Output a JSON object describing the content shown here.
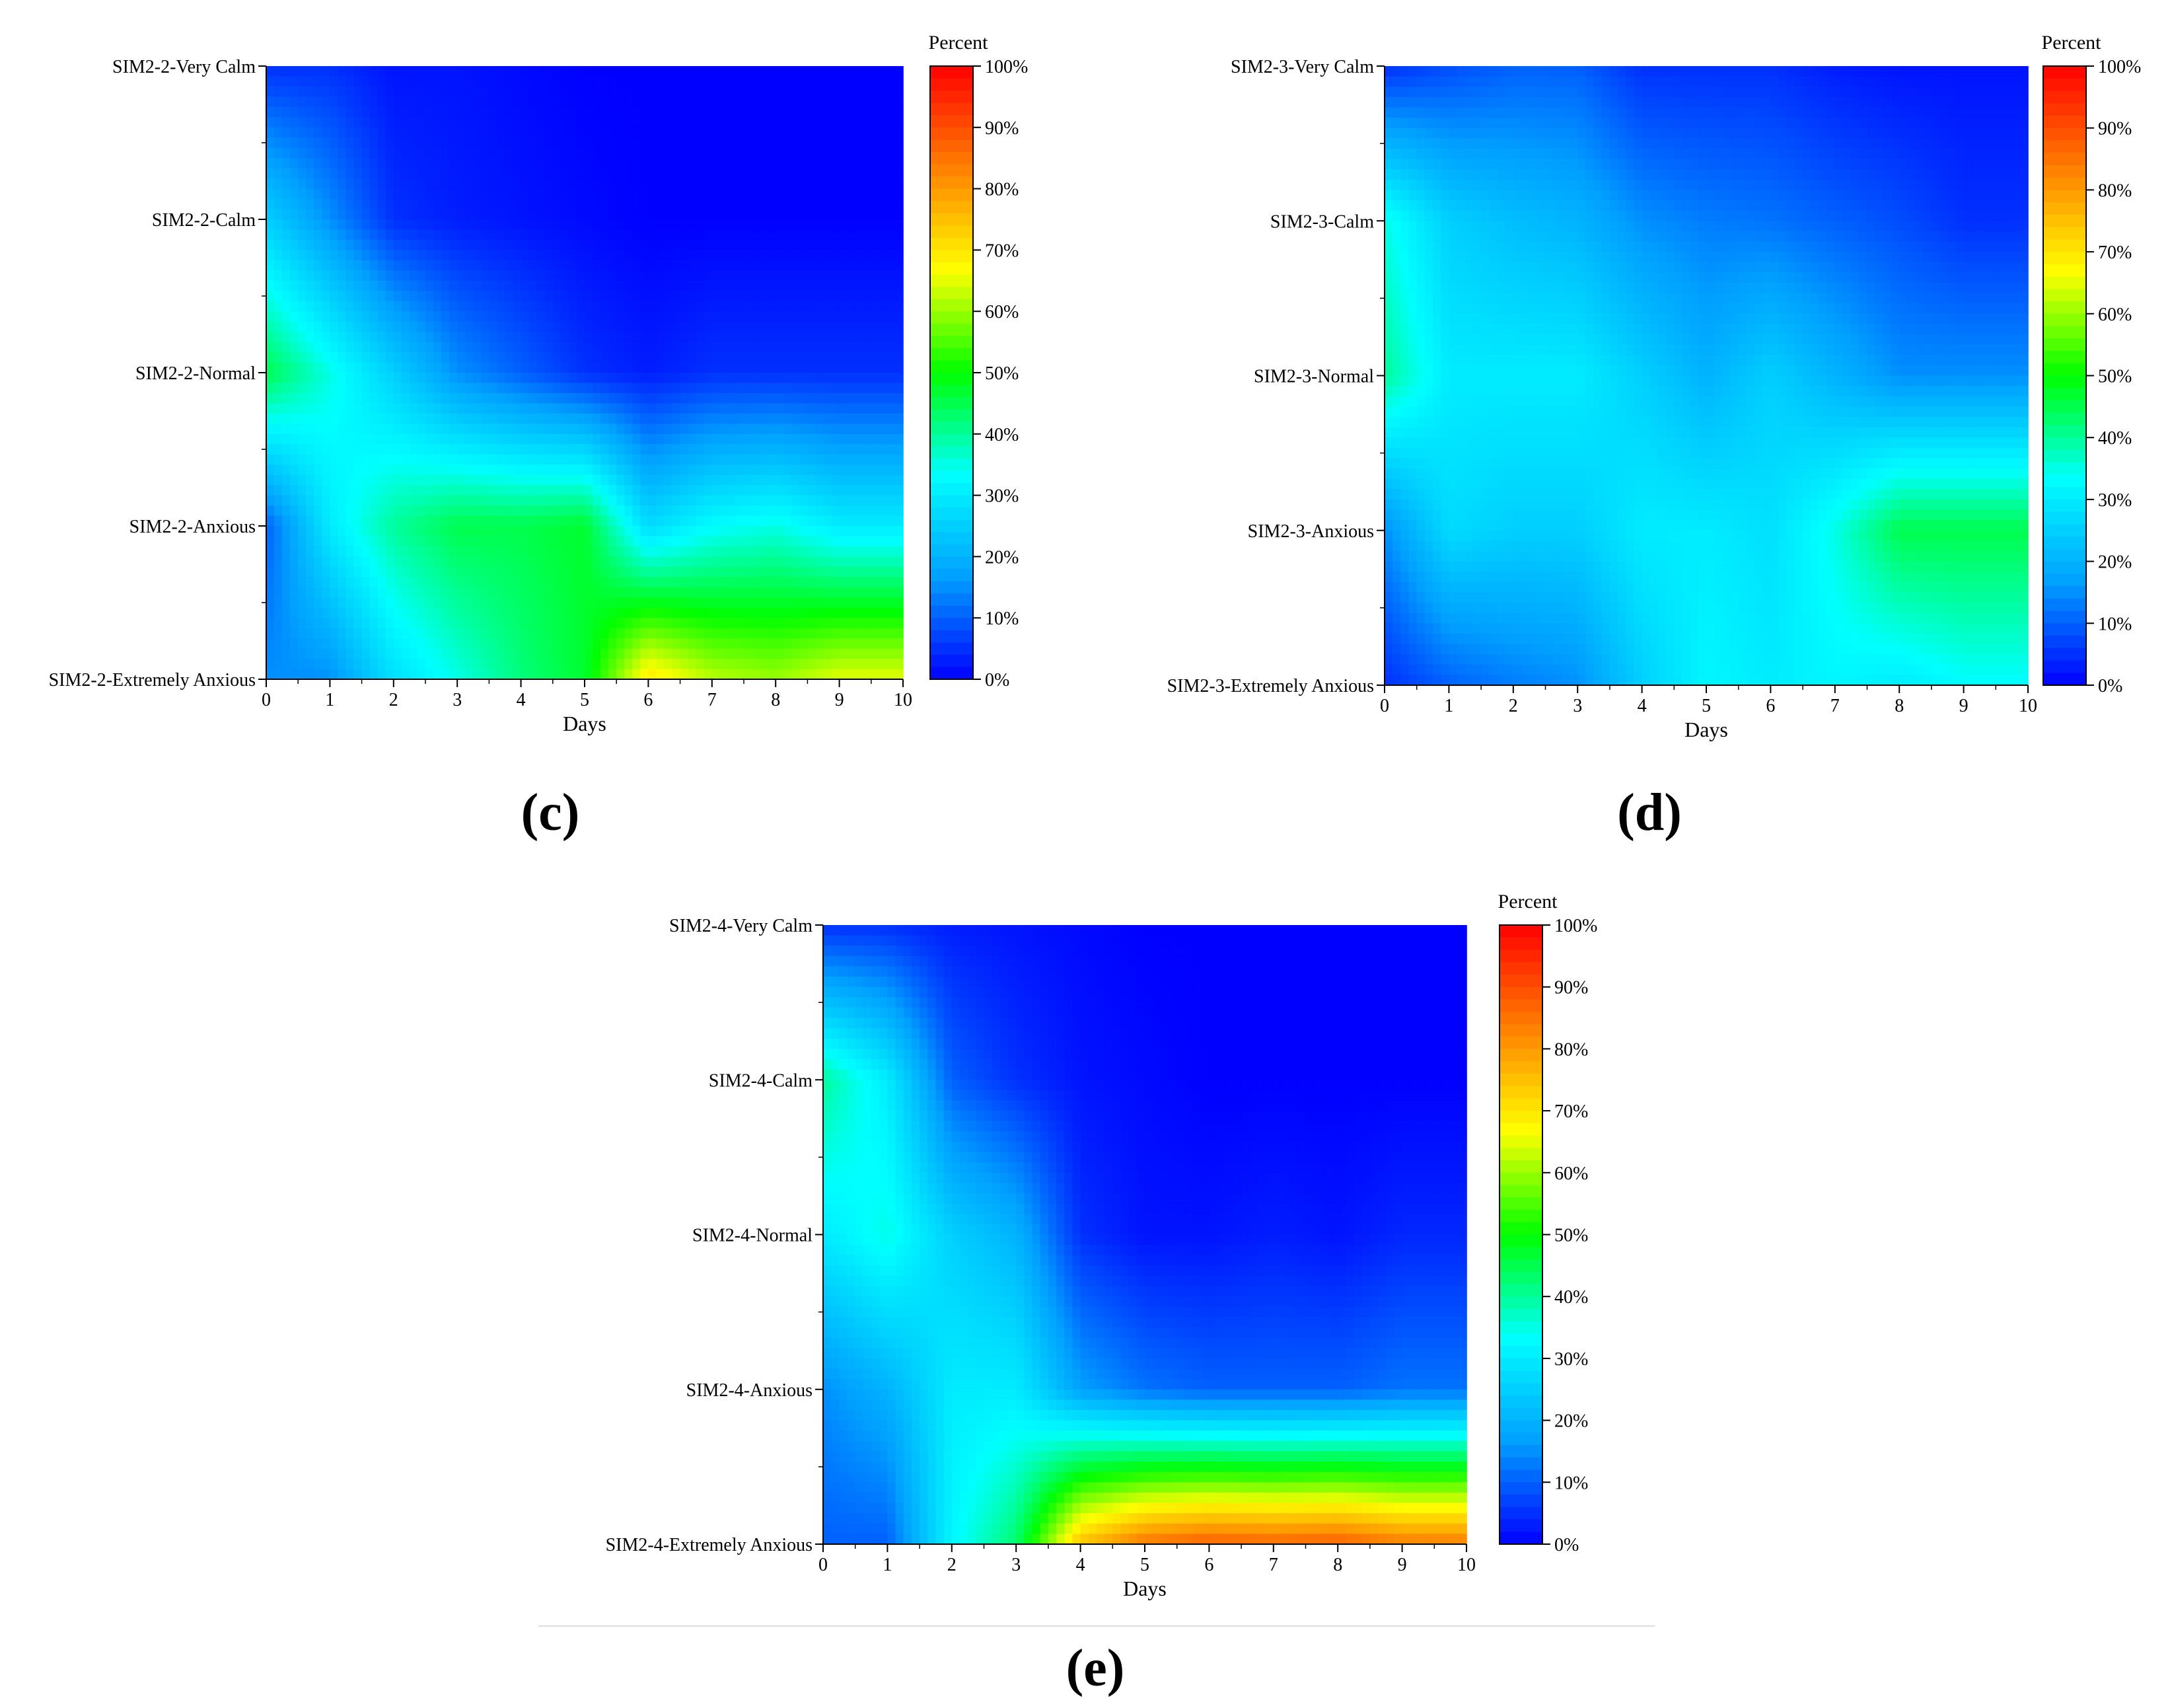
{
  "colorbar": {
    "title": "Percent",
    "ticks": [
      "0%",
      "10%",
      "20%",
      "30%",
      "40%",
      "50%",
      "60%",
      "70%",
      "80%",
      "90%",
      "100%"
    ],
    "palette": [
      "#0000ff",
      "#00a0ff",
      "#00ffff",
      "#00ff00",
      "#ffff00",
      "#ff8000",
      "#ff0000"
    ]
  },
  "chart_data": [
    {
      "type": "heatmap",
      "panel": "(c)",
      "xlabel": "Days",
      "ylabel": "",
      "x": [
        0,
        1,
        2,
        3,
        4,
        5,
        6,
        7,
        8,
        9,
        10
      ],
      "xlim": [
        0,
        10
      ],
      "y_categories": [
        "SIM2-2-Very Calm",
        "SIM2-2-Calm",
        "SIM2-2-Normal",
        "SIM2-2-Anxious",
        "SIM2-2-Extremely Anxious"
      ],
      "clim": [
        0,
        100
      ],
      "colorbar_title": "Percent",
      "z": [
        [
          5,
          25,
          45,
          10,
          15
        ],
        [
          5,
          15,
          35,
          30,
          15
        ],
        [
          2,
          5,
          25,
          40,
          28
        ],
        [
          2,
          3,
          15,
          45,
          35
        ],
        [
          1,
          2,
          10,
          45,
          42
        ],
        [
          0,
          1,
          5,
          47,
          47
        ],
        [
          0,
          0,
          3,
          27,
          70
        ],
        [
          0,
          0,
          5,
          33,
          62
        ],
        [
          0,
          0,
          5,
          35,
          60
        ],
        [
          0,
          0,
          5,
          30,
          65
        ],
        [
          0,
          0,
          5,
          30,
          65
        ]
      ]
    },
    {
      "type": "heatmap",
      "panel": "(d)",
      "xlabel": "Days",
      "ylabel": "",
      "x": [
        0,
        1,
        2,
        3,
        4,
        5,
        6,
        7,
        8,
        9,
        10
      ],
      "xlim": [
        0,
        10
      ],
      "y_categories": [
        "SIM2-3-Very Calm",
        "SIM2-3-Calm",
        "SIM2-3-Normal",
        "SIM2-3-Anxious",
        "SIM2-3-Extremely Anxious"
      ],
      "clim": [
        0,
        100
      ],
      "colorbar_title": "Percent",
      "z": [
        [
          5,
          35,
          40,
          15,
          5
        ],
        [
          8,
          25,
          30,
          27,
          10
        ],
        [
          10,
          22,
          30,
          25,
          13
        ],
        [
          10,
          20,
          30,
          25,
          15
        ],
        [
          5,
          15,
          25,
          30,
          25
        ],
        [
          5,
          13,
          20,
          30,
          32
        ],
        [
          5,
          12,
          25,
          28,
          30
        ],
        [
          3,
          10,
          20,
          35,
          32
        ],
        [
          2,
          8,
          15,
          45,
          30
        ],
        [
          2,
          5,
          15,
          45,
          33
        ],
        [
          2,
          5,
          15,
          45,
          33
        ]
      ]
    },
    {
      "type": "heatmap",
      "panel": "(e)",
      "xlabel": "Days",
      "ylabel": "",
      "x": [
        0,
        1,
        2,
        3,
        4,
        5,
        6,
        7,
        8,
        9,
        10
      ],
      "xlim": [
        0,
        10
      ],
      "y_categories": [
        "SIM2-4-Very Calm",
        "SIM2-4-Calm",
        "SIM2-4-Normal",
        "SIM2-4-Anxious",
        "SIM2-4-Extremely Anxious"
      ],
      "clim": [
        0,
        100
      ],
      "colorbar_title": "Percent",
      "z": [
        [
          5,
          40,
          30,
          15,
          10
        ],
        [
          5,
          30,
          35,
          20,
          10
        ],
        [
          3,
          10,
          25,
          30,
          32
        ],
        [
          2,
          5,
          20,
          30,
          43
        ],
        [
          1,
          2,
          5,
          17,
          75
        ],
        [
          0,
          1,
          2,
          12,
          85
        ],
        [
          0,
          0,
          2,
          10,
          88
        ],
        [
          0,
          0,
          3,
          10,
          87
        ],
        [
          0,
          0,
          2,
          10,
          88
        ],
        [
          0,
          0,
          4,
          12,
          84
        ],
        [
          0,
          0,
          4,
          12,
          84
        ]
      ]
    }
  ],
  "panel_labels": [
    "(c)",
    "(d)",
    "(e)"
  ]
}
